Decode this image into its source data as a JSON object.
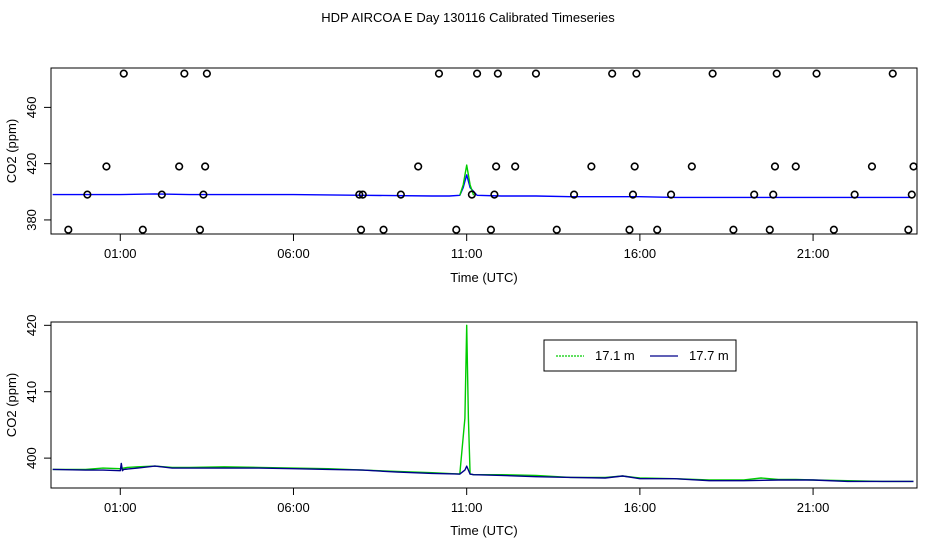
{
  "figure": {
    "title": "HDP AIRCOA E  Day 130116  Calibrated Timeseries"
  },
  "chart_data": [
    {
      "type": "line",
      "subtype": "timeseries with calibration-standard points",
      "title": "",
      "xlabel": "Time (UTC)",
      "ylabel": "CO2 (ppm)",
      "x_ticks": [
        "01:00",
        "06:00",
        "11:00",
        "16:00",
        "21:00"
      ],
      "x_tick_hours": [
        1,
        6,
        11,
        16,
        21
      ],
      "xlim_hours": [
        -1.0,
        24.0
      ],
      "y_ticks": [
        380,
        420,
        460
      ],
      "ylim": [
        370,
        488
      ],
      "grid": false,
      "legend": null,
      "line_series": [
        {
          "color": "#0000ff",
          "x_hours": [
            -0.95,
            0.5,
            1.0,
            2.0,
            3.0,
            4.0,
            6.0,
            8.0,
            10.0,
            10.5,
            10.8,
            10.9,
            11.0,
            11.1,
            11.3,
            12.0,
            13.0,
            14.0,
            15.0,
            16.0,
            17.0,
            18.0,
            19.0,
            20.0,
            21.0,
            22.0,
            23.0,
            23.8
          ],
          "values": [
            398,
            398,
            398,
            398.5,
            398,
            398,
            398,
            397.5,
            397,
            397,
            397.5,
            403,
            412,
            403,
            397.5,
            397,
            397,
            396.5,
            396.5,
            396.5,
            396,
            396,
            396,
            396,
            396,
            396,
            396,
            396
          ]
        },
        {
          "color": "#00cc00",
          "x_hours": [
            10.8,
            10.9,
            11.0,
            11.1,
            11.2
          ],
          "values": [
            397.5,
            405,
            419,
            405,
            397.5
          ]
        }
      ],
      "calibration_points": {
        "x_hours": [
          -0.5,
          0.05,
          0.6,
          1.1,
          1.65,
          2.2,
          2.7,
          2.85,
          3.3,
          3.4,
          3.45,
          3.5,
          7.9,
          7.95,
          8.0,
          8.6,
          9.1,
          9.6,
          10.2,
          10.7,
          11.15,
          11.3,
          11.7,
          11.8,
          11.85,
          11.9,
          12.4,
          13.0,
          13.6,
          14.1,
          14.6,
          15.2,
          15.7,
          15.8,
          15.85,
          15.9,
          16.5,
          16.9,
          17.5,
          18.1,
          18.7,
          19.3,
          19.75,
          19.85,
          19.9,
          19.95,
          20.5,
          21.1,
          21.6,
          22.2,
          22.7,
          23.3,
          23.75,
          23.85,
          23.9
        ],
        "values": [
          373,
          398,
          418,
          484,
          373,
          398,
          418,
          484,
          373,
          398,
          418,
          484,
          398,
          373,
          398,
          373,
          398,
          418,
          484,
          373,
          398,
          484,
          373,
          398,
          418,
          484,
          418,
          484,
          373,
          398,
          418,
          484,
          373,
          398,
          418,
          484,
          373,
          398,
          418,
          484,
          373,
          398,
          373,
          398,
          418,
          484,
          418,
          484,
          373,
          398,
          418,
          484,
          373,
          398,
          418
        ]
      }
    },
    {
      "type": "line",
      "title": "",
      "xlabel": "Time (UTC)",
      "ylabel": "CO2 (ppm)",
      "x_ticks": [
        "01:00",
        "06:00",
        "11:00",
        "16:00",
        "21:00"
      ],
      "x_tick_hours": [
        1,
        6,
        11,
        16,
        21
      ],
      "xlim_hours": [
        -1.0,
        24.0
      ],
      "y_ticks": [
        400,
        410,
        420
      ],
      "ylim": [
        395.5,
        420.5
      ],
      "grid": false,
      "legend": {
        "placement": "top-right"
      },
      "series": [
        {
          "name": "17.1 m",
          "color": "#00cc00",
          "x_hours": [
            -0.95,
            0.0,
            0.5,
            1.0,
            1.2,
            1.5,
            2.0,
            2.5,
            3.0,
            4.0,
            5.0,
            6.0,
            7.0,
            8.0,
            9.0,
            10.0,
            10.8,
            10.95,
            11.0,
            11.05,
            11.1,
            11.2,
            12.0,
            13.0,
            14.0,
            15.0,
            15.5,
            16.0,
            17.0,
            18.0,
            19.0,
            19.5,
            20.0,
            20.5,
            21.0,
            22.0,
            23.0,
            23.9
          ],
          "values": [
            398.3,
            398.3,
            398.5,
            398.4,
            398.6,
            398.7,
            398.8,
            398.6,
            398.6,
            398.7,
            398.6,
            398.5,
            398.4,
            398.2,
            398.0,
            397.8,
            397.6,
            406,
            420,
            406,
            397.6,
            397.5,
            397.5,
            397.4,
            397.1,
            397.1,
            397.3,
            397.0,
            396.9,
            396.7,
            396.7,
            397.0,
            396.8,
            396.8,
            396.7,
            396.6,
            396.5,
            396.5
          ]
        },
        {
          "name": "17.7 m",
          "color": "#00008b",
          "x_hours": [
            -0.95,
            0.0,
            0.5,
            1.0,
            1.03,
            1.06,
            1.1,
            1.5,
            2.0,
            2.5,
            3.0,
            4.0,
            5.0,
            6.0,
            7.0,
            8.0,
            9.0,
            10.0,
            10.8,
            10.95,
            11.0,
            11.05,
            11.1,
            11.2,
            12.0,
            13.0,
            14.0,
            15.0,
            15.5,
            16.0,
            17.0,
            18.0,
            19.0,
            20.0,
            21.0,
            22.0,
            23.0,
            23.9
          ],
          "values": [
            398.3,
            398.2,
            398.2,
            398.1,
            399.2,
            398.1,
            398.3,
            398.5,
            398.8,
            398.5,
            398.5,
            398.5,
            398.5,
            398.4,
            398.3,
            398.2,
            397.9,
            397.7,
            397.6,
            398.2,
            398.8,
            398.2,
            397.6,
            397.5,
            397.4,
            397.2,
            397.1,
            397.0,
            397.3,
            396.9,
            396.9,
            396.6,
            396.6,
            396.7,
            396.7,
            396.5,
            396.5,
            396.5
          ]
        }
      ]
    }
  ]
}
